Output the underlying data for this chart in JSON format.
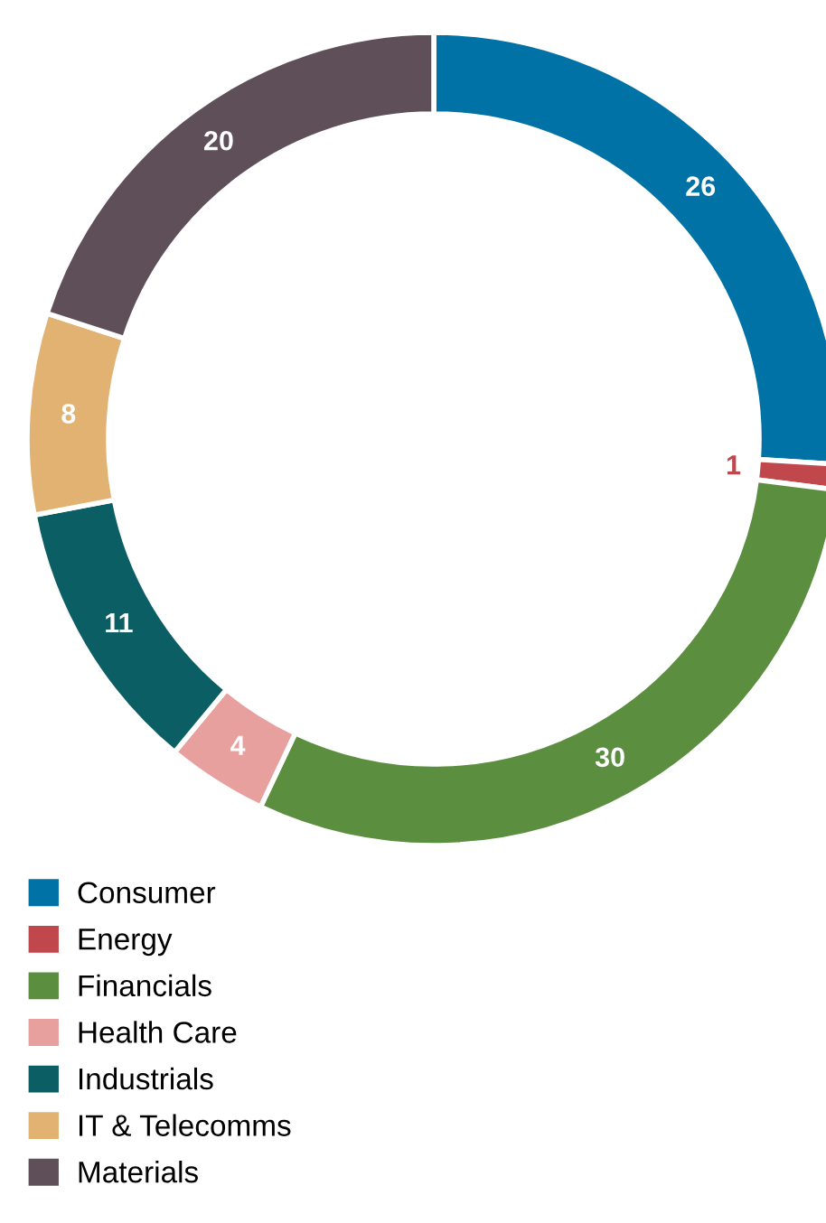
{
  "chart_data": {
    "type": "donut",
    "categories": [
      "Consumer",
      "Energy",
      "Financials",
      "Health Care",
      "Industrials",
      "IT & Telecomms",
      "Materials"
    ],
    "values": [
      26,
      1,
      30,
      4,
      11,
      8,
      20
    ],
    "colors": [
      "#0072a6",
      "#c0474b",
      "#5b8f3f",
      "#e8a09e",
      "#0b5e63",
      "#e2b273",
      "#5f4f59"
    ],
    "data_labels": true,
    "legend": "bottom left"
  }
}
